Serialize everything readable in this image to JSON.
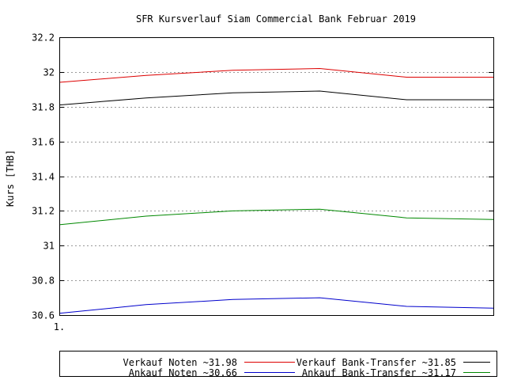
{
  "chart_data": {
    "type": "line",
    "title": "SFR Kursverlauf Siam Commercial Bank Februar 2019",
    "xlabel": "",
    "ylabel": "Kurs [THB]",
    "x": [
      1,
      2,
      3,
      4,
      5,
      6
    ],
    "x_tick_labels": [
      "1."
    ],
    "y_ticks": [
      30.6,
      30.8,
      31,
      31.2,
      31.4,
      31.6,
      31.8,
      32,
      32.2
    ],
    "y_tick_labels": [
      "30.6",
      "30.8",
      "31",
      "31.2",
      "31.4",
      "31.6",
      "31.8",
      "32",
      "32.2"
    ],
    "ylim": [
      30.6,
      32.2
    ],
    "grid": "horizontal dotted",
    "legend_position": "bottom",
    "series": [
      {
        "name": "Verkauf Noten ~31.98",
        "color": "#dd0000",
        "values": [
          31.94,
          31.98,
          32.01,
          32.02,
          31.97,
          31.97
        ]
      },
      {
        "name": "Verkauf Bank-Transfer ~31.85",
        "color": "#000000",
        "values": [
          31.81,
          31.85,
          31.88,
          31.89,
          31.84,
          31.84
        ]
      },
      {
        "name": "Ankauf Noten ~30.66",
        "color": "#0000cc",
        "values": [
          30.61,
          30.66,
          30.69,
          30.7,
          30.65,
          30.64
        ]
      },
      {
        "name": "Ankauf Bank-Transfer ~31.17",
        "color": "#008800",
        "values": [
          31.12,
          31.17,
          31.2,
          31.21,
          31.16,
          31.15
        ]
      }
    ]
  }
}
